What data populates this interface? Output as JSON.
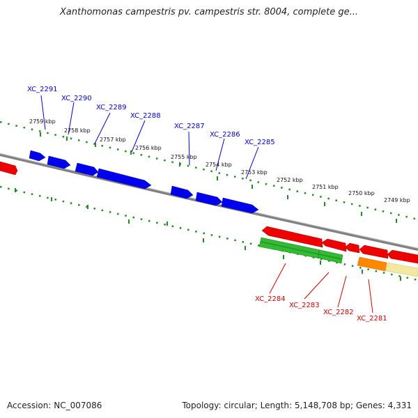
{
  "title": "Xanthomonas campestris pv. campestris str. 8004, complete ge...",
  "accession": "Accession: NC_007086",
  "stats": "Topology: circular; Length: 5,148,708 bp; Genes: 4,331",
  "colors": {
    "backbone": "#808080",
    "tick": "#228b22",
    "forward_gene": "#0000ee",
    "reverse_gene": "#ee0000",
    "rna": "#33bb33",
    "orange": "#ff8800",
    "pale_yellow": "#f2e8a0"
  },
  "ticks": [
    "2759 kbp",
    "2758 kbp",
    "2757 kbp",
    "2756 kbp",
    "2755 kbp",
    "2754 kbp",
    "2753 kbp",
    "2752 kbp",
    "2751 kbp",
    "2750 kbp",
    "2749 kbp"
  ],
  "forward_labels": [
    "XC_2291",
    "XC_2290",
    "XC_2289",
    "XC_2288",
    "XC_2287",
    "XC_2286",
    "XC_2285"
  ],
  "reverse_labels": [
    "XC_2284",
    "XC_2283",
    "XC_2282",
    "XC_2281"
  ]
}
